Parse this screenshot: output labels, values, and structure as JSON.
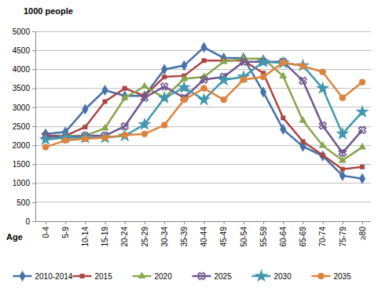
{
  "chart_data": {
    "type": "line",
    "y_label": "1000 people",
    "x_label": "Age",
    "categories": [
      "0-4",
      "5-9",
      "10-14",
      "15-19",
      "20-24",
      "25-29",
      "30-34",
      "35-39",
      "40-44",
      "45-49",
      "50-54",
      "55-59",
      "60-64",
      "65-69",
      "70-74",
      "75-79",
      "≥80"
    ],
    "ylim": [
      0,
      5000
    ],
    "yticks": [
      0,
      500,
      1000,
      1500,
      2000,
      2500,
      3000,
      3500,
      4000,
      4500,
      5000
    ],
    "grid": true,
    "legend": "bottom",
    "series": [
      {
        "name": "2010-2014",
        "color": "#4572a7",
        "marker": "diamond",
        "values": [
          2300,
          2350,
          2950,
          3450,
          3300,
          3300,
          4000,
          4100,
          4580,
          4300,
          4300,
          3400,
          2420,
          1970,
          1720,
          1200,
          1120
        ]
      },
      {
        "name": "2015",
        "color": "#aa4643",
        "marker": "square",
        "values": [
          2250,
          2250,
          2480,
          3150,
          3500,
          3300,
          3800,
          3830,
          4230,
          4230,
          4230,
          3900,
          2720,
          2100,
          1740,
          1370,
          1430
        ]
      },
      {
        "name": "2020",
        "color": "#89a54e",
        "marker": "triangle",
        "values": [
          2200,
          2250,
          2250,
          2450,
          3250,
          3550,
          3250,
          3750,
          3800,
          4200,
          4280,
          4280,
          3820,
          2650,
          1990,
          1600,
          1950
        ]
      },
      {
        "name": "2025",
        "color": "#71588f",
        "marker": "x",
        "values": [
          2250,
          2200,
          2250,
          2250,
          2500,
          3250,
          3550,
          3250,
          3730,
          3800,
          4200,
          4200,
          4200,
          3700,
          2520,
          1800,
          2400
        ]
      },
      {
        "name": "2030",
        "color": "#4198af",
        "marker": "star",
        "values": [
          2150,
          2200,
          2200,
          2200,
          2250,
          2550,
          3250,
          3520,
          3200,
          3720,
          3800,
          4200,
          4170,
          4100,
          3500,
          2300,
          2880
        ]
      },
      {
        "name": "2035",
        "color": "#db843d",
        "marker": "circle",
        "values": [
          1950,
          2130,
          2170,
          2200,
          2270,
          2300,
          2530,
          3200,
          3500,
          3200,
          3730,
          3800,
          4180,
          4090,
          3930,
          3250,
          3660
        ]
      }
    ]
  }
}
